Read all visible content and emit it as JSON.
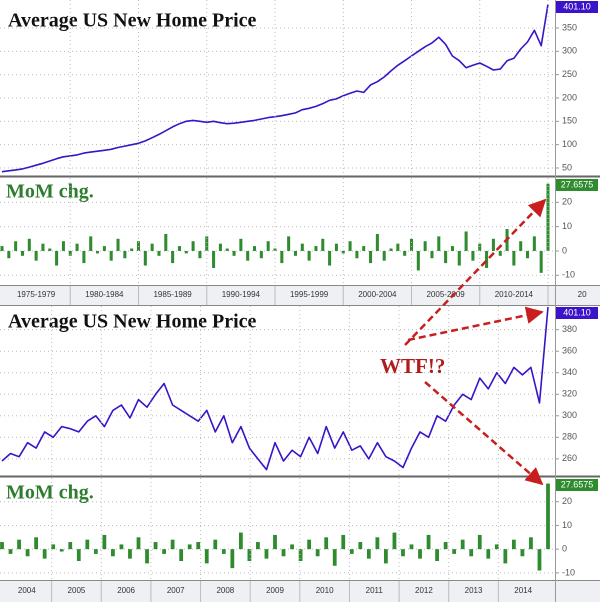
{
  "chart_data": [
    {
      "type": "line",
      "title": "Average US New Home Price",
      "color": "#3a14c8",
      "values": [
        42,
        44,
        46,
        48,
        52,
        56,
        60,
        65,
        70,
        74,
        76,
        78,
        82,
        84,
        86,
        88,
        90,
        94,
        97,
        100,
        103,
        108,
        115,
        122,
        130,
        138,
        145,
        150,
        152,
        150,
        148,
        150,
        147,
        145,
        146,
        148,
        150,
        152,
        155,
        158,
        160,
        162,
        165,
        168,
        175,
        178,
        182,
        188,
        195,
        198,
        205,
        210,
        215,
        212,
        228,
        235,
        245,
        258,
        270,
        280,
        290,
        300,
        310,
        318,
        330,
        315,
        290,
        280,
        265,
        270,
        275,
        268,
        260,
        262,
        280,
        285,
        305,
        320,
        345,
        312,
        401.1
      ],
      "last_value_label": "401.10",
      "ylim": [
        35,
        410
      ],
      "yticks": [
        50,
        100,
        150,
        200,
        250,
        300,
        350
      ],
      "grid": true
    },
    {
      "type": "bar",
      "title": "MoM chg.",
      "color": "#2e8b2e",
      "values": [
        2,
        -3,
        4,
        -2,
        5,
        -4,
        3,
        1,
        -6,
        4,
        -2,
        3,
        -5,
        6,
        -1,
        2,
        -4,
        5,
        -3,
        1,
        4,
        -6,
        3,
        -2,
        7,
        -5,
        2,
        -1,
        4,
        -3,
        6,
        -7,
        3,
        1,
        -2,
        5,
        -4,
        2,
        -3,
        4,
        1,
        -5,
        6,
        -2,
        3,
        -4,
        2,
        5,
        -6,
        3,
        -1,
        4,
        -3,
        2,
        -5,
        7,
        -4,
        1,
        3,
        -2,
        5,
        -8,
        4,
        -3,
        6,
        -5,
        2,
        -6,
        8,
        -4,
        3,
        -7,
        5,
        -2,
        9,
        -6,
        4,
        -3,
        6,
        -9,
        27.6575
      ],
      "last_value_label": "27.6575",
      "ylim": [
        -14,
        30
      ],
      "yticks": [
        -10,
        0,
        10,
        20
      ],
      "grid": true,
      "period_labels": [
        "1975-1979",
        "1980-1984",
        "1985-1989",
        "1990-1994",
        "1995-1999",
        "2000-2004",
        "2005-2009",
        "2010-2014",
        "20"
      ]
    },
    {
      "type": "line",
      "title": "Average US New Home Price",
      "color": "#3a14c8",
      "values": [
        258,
        265,
        262,
        275,
        270,
        285,
        280,
        290,
        288,
        285,
        295,
        300,
        290,
        305,
        310,
        298,
        315,
        308,
        320,
        330,
        310,
        305,
        300,
        295,
        305,
        285,
        300,
        275,
        290,
        270,
        260,
        250,
        275,
        258,
        268,
        262,
        280,
        265,
        290,
        270,
        285,
        268,
        272,
        260,
        275,
        262,
        258,
        252,
        270,
        285,
        280,
        300,
        295,
        310,
        320,
        315,
        335,
        325,
        340,
        330,
        345,
        338,
        345,
        312,
        401.1
      ],
      "last_value_label": "401.10",
      "ylim": [
        245,
        402
      ],
      "yticks": [
        260,
        280,
        300,
        320,
        340,
        360,
        380
      ],
      "grid": true
    },
    {
      "type": "bar",
      "title": "MoM chg.",
      "color": "#2e8b2e",
      "values": [
        3,
        -2,
        4,
        -3,
        5,
        -4,
        2,
        -1,
        3,
        -5,
        4,
        -2,
        6,
        -3,
        2,
        -4,
        5,
        -6,
        3,
        -2,
        4,
        -5,
        2,
        3,
        -6,
        4,
        -2,
        -8,
        7,
        -5,
        3,
        -4,
        6,
        -3,
        2,
        -5,
        4,
        -3,
        5,
        -7,
        6,
        -2,
        3,
        -4,
        5,
        -6,
        7,
        -3,
        2,
        -4,
        6,
        -5,
        3,
        -2,
        4,
        -3,
        6,
        -4,
        2,
        -6,
        4,
        -3,
        5,
        -9,
        27.6575
      ],
      "last_value_label": "27.6575",
      "ylim": [
        -13,
        30
      ],
      "yticks": [
        -10,
        0,
        10,
        20
      ],
      "grid": true,
      "period_labels": [
        "2004",
        "2005",
        "2006",
        "2007",
        "2008",
        "2009",
        "2010",
        "2011",
        "2012",
        "2013",
        "2014"
      ]
    }
  ],
  "annotation": "WTF!?"
}
